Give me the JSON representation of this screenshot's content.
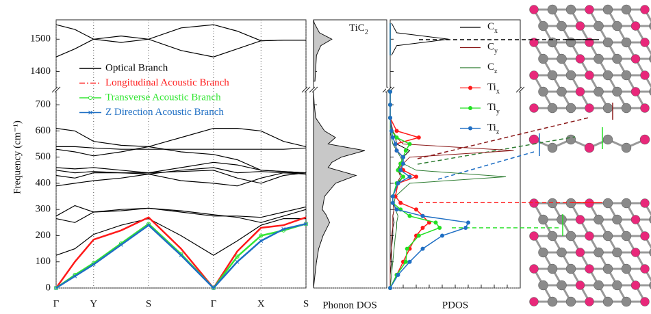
{
  "chart_data": [
    {
      "type": "dispersion",
      "ylabel": "Frequency (cm⁻¹)",
      "ylim": [
        0,
        1560
      ],
      "ybreak": [
        750,
        1350
      ],
      "yticks": [
        0,
        100,
        200,
        300,
        400,
        500,
        600,
        700,
        1400,
        1500
      ],
      "xlim": [
        0,
        1
      ],
      "xticks": [
        {
          "value": 0,
          "label": "Γ"
        },
        {
          "value": 0.15,
          "label": "Y"
        },
        {
          "value": 0.37,
          "label": "S"
        },
        {
          "value": 0.63,
          "label": "Γ"
        },
        {
          "value": 0.82,
          "label": "X"
        },
        {
          "value": 1.0,
          "label": "S"
        }
      ],
      "x": [
        0,
        0.075,
        0.15,
        0.26,
        0.37,
        0.5,
        0.63,
        0.725,
        0.82,
        0.91,
        1.0
      ],
      "series": [
        {
          "name": "Optical Branch",
          "color": "#000000",
          "marker": "none",
          "branches": [
            [
              610,
              600,
              560,
              545,
              540,
              575,
              610,
              610,
              600,
              560,
              540
            ],
            [
              540,
              540,
              535,
              530,
              530,
              530,
              530,
              530,
              530,
              530,
              535
            ],
            [
              530,
              520,
              505,
              520,
              540,
              520,
              510,
              490,
              450,
              445,
              440
            ],
            [
              460,
              455,
              460,
              450,
              440,
              460,
              480,
              470,
              450,
              445,
              440
            ],
            [
              450,
              440,
              445,
              440,
              435,
              450,
              460,
              440,
              445,
              440,
              435
            ],
            [
              430,
              420,
              440,
              440,
              440,
              445,
              450,
              420,
              400,
              430,
              440
            ],
            [
              390,
              400,
              410,
              420,
              435,
              410,
              400,
              390,
              420,
              440,
              440
            ],
            [
              275,
              315,
              290,
              295,
              305,
              290,
              275,
              275,
              270,
              290,
              310
            ],
            [
              265,
              250,
              290,
              300,
              305,
              295,
              280,
              270,
              250,
              275,
              300
            ],
            [
              125,
              150,
              205,
              240,
              265,
              200,
              125,
              180,
              240,
              265,
              265
            ],
            [
              1545,
              1530,
              1500,
              1510,
              1500,
              1535,
              1545,
              1525,
              1495,
              1497,
              1497
            ],
            [
              1445,
              1470,
              1500,
              1490,
              1500,
              1465,
              1445,
              1470,
              1495,
              1497,
              1497
            ]
          ]
        },
        {
          "name": "Longitudinal Acoustic Branch",
          "color": "#ff1a1a",
          "marker": "none",
          "branches": [
            [
              0,
              100,
              185,
              220,
              270,
              150,
              0,
              140,
              230,
              240,
              270
            ]
          ]
        },
        {
          "name": "Transverse Acoustic Branch",
          "color": "#33e633",
          "marker": "circle",
          "branches": [
            [
              0,
              50,
              95,
              170,
              245,
              130,
              0,
              120,
              200,
              220,
              245
            ]
          ]
        },
        {
          "name": "Z Direction Acoustic Branch",
          "color": "#1f6fc4",
          "marker": "x",
          "branches": [
            [
              0,
              45,
              90,
              165,
              240,
              125,
              0,
              100,
              180,
              225,
              245
            ]
          ]
        }
      ]
    },
    {
      "type": "area",
      "xlabel": "Phonon DOS",
      "annotation": "TiC2",
      "color": "#c8c8c8",
      "ylim": [
        0,
        1560
      ],
      "ybreak": [
        750,
        1350
      ],
      "yticks": [
        0,
        100,
        200,
        300,
        400,
        500,
        600,
        700,
        1400,
        1500
      ],
      "xlim": [
        0,
        1
      ],
      "y": [
        0,
        50,
        100,
        150,
        200,
        250,
        280,
        300,
        350,
        400,
        430,
        460,
        480,
        500,
        525,
        550,
        575,
        600,
        650,
        700,
        750,
        null,
        1370,
        1450,
        1480,
        1500,
        1520,
        1550,
        1560
      ],
      "values": [
        0,
        0.02,
        0.04,
        0.07,
        0.13,
        0.22,
        0.17,
        0.12,
        0.15,
        0.3,
        0.58,
        0.2,
        0.25,
        0.38,
        0.7,
        0.2,
        0.3,
        0.15,
        0.03,
        0.01,
        0,
        null,
        0.02,
        0.04,
        0.1,
        0.25,
        0.08,
        0.01,
        0
      ]
    },
    {
      "type": "pdos",
      "xlabel": "PDOS",
      "ylim": [
        0,
        1560
      ],
      "ybreak": [
        750,
        1350
      ],
      "yticks": [
        0,
        100,
        200,
        300,
        400,
        500,
        600,
        700,
        1400,
        1500
      ],
      "xlim": [
        0,
        1
      ],
      "y": [
        0,
        50,
        100,
        150,
        200,
        230,
        250,
        275,
        300,
        325,
        350,
        400,
        425,
        450,
        475,
        500,
        525,
        550,
        575,
        600,
        650,
        700,
        750,
        null,
        1450,
        1480,
        1500,
        1520,
        1550
      ],
      "series": [
        {
          "name": "Cx",
          "color": "#000000",
          "marker": false,
          "values": [
            0,
            0,
            0.01,
            0.01,
            0.02,
            0.02,
            0.03,
            0.02,
            0.03,
            0.02,
            0.02,
            0.06,
            0.1,
            0.05,
            0.08,
            0.1,
            0.15,
            0.05,
            0.04,
            0.02,
            0,
            0,
            0,
            null,
            0.01,
            0.05,
            0.45,
            0.05,
            0.01
          ]
        },
        {
          "name": "Cy",
          "color": "#8b1a1a",
          "marker": false,
          "values": [
            0,
            0,
            0,
            0.01,
            0.01,
            0.02,
            0.02,
            0.02,
            0.03,
            0.02,
            0.02,
            0.05,
            0.08,
            0.06,
            0.1,
            0.15,
            0.95,
            0.1,
            0.05,
            0.02,
            0,
            0,
            0,
            null,
            0,
            0,
            0,
            0,
            0
          ]
        },
        {
          "name": "Cz",
          "color": "#2e7d32",
          "marker": false,
          "values": [
            0,
            0.01,
            0.02,
            0.03,
            0.04,
            0.05,
            0.05,
            0.06,
            0.04,
            0.03,
            0.04,
            0.15,
            0.89,
            0.2,
            0.1,
            0.08,
            0.05,
            0.02,
            0.01,
            0,
            0,
            0,
            0,
            null,
            0,
            0,
            0,
            0,
            0
          ]
        },
        {
          "name": "Tix",
          "color": "#ff1a1a",
          "marker": true,
          "values": [
            0,
            0.05,
            0.1,
            0.15,
            0.2,
            0.25,
            0.3,
            0.25,
            0.2,
            0.08,
            0.04,
            0.06,
            0.2,
            0.1,
            0.08,
            0.1,
            0.05,
            0.04,
            0.22,
            0.05,
            0,
            0,
            0,
            null,
            0,
            0,
            0,
            0,
            0
          ]
        },
        {
          "name": "Tiy",
          "color": "#22e022",
          "marker": true,
          "values": [
            0,
            0.05,
            0.12,
            0.13,
            0.22,
            0.38,
            0.35,
            0.15,
            0.08,
            0.02,
            0.02,
            0.05,
            0.1,
            0.06,
            0.08,
            0.1,
            0.12,
            0.15,
            0.05,
            0.01,
            0,
            0,
            0,
            null,
            0,
            0,
            0,
            0,
            0
          ]
        },
        {
          "name": "Tiz",
          "color": "#1f6fc4",
          "marker": true,
          "values": [
            0,
            0.06,
            0.15,
            0.25,
            0.4,
            0.58,
            0.6,
            0.25,
            0.05,
            0.02,
            0.02,
            0.06,
            0.15,
            0.08,
            0.1,
            0.1,
            0.05,
            0.04,
            0.02,
            0.01,
            0,
            0,
            0,
            null,
            0,
            0,
            0,
            0,
            0
          ]
        }
      ]
    }
  ]
}
